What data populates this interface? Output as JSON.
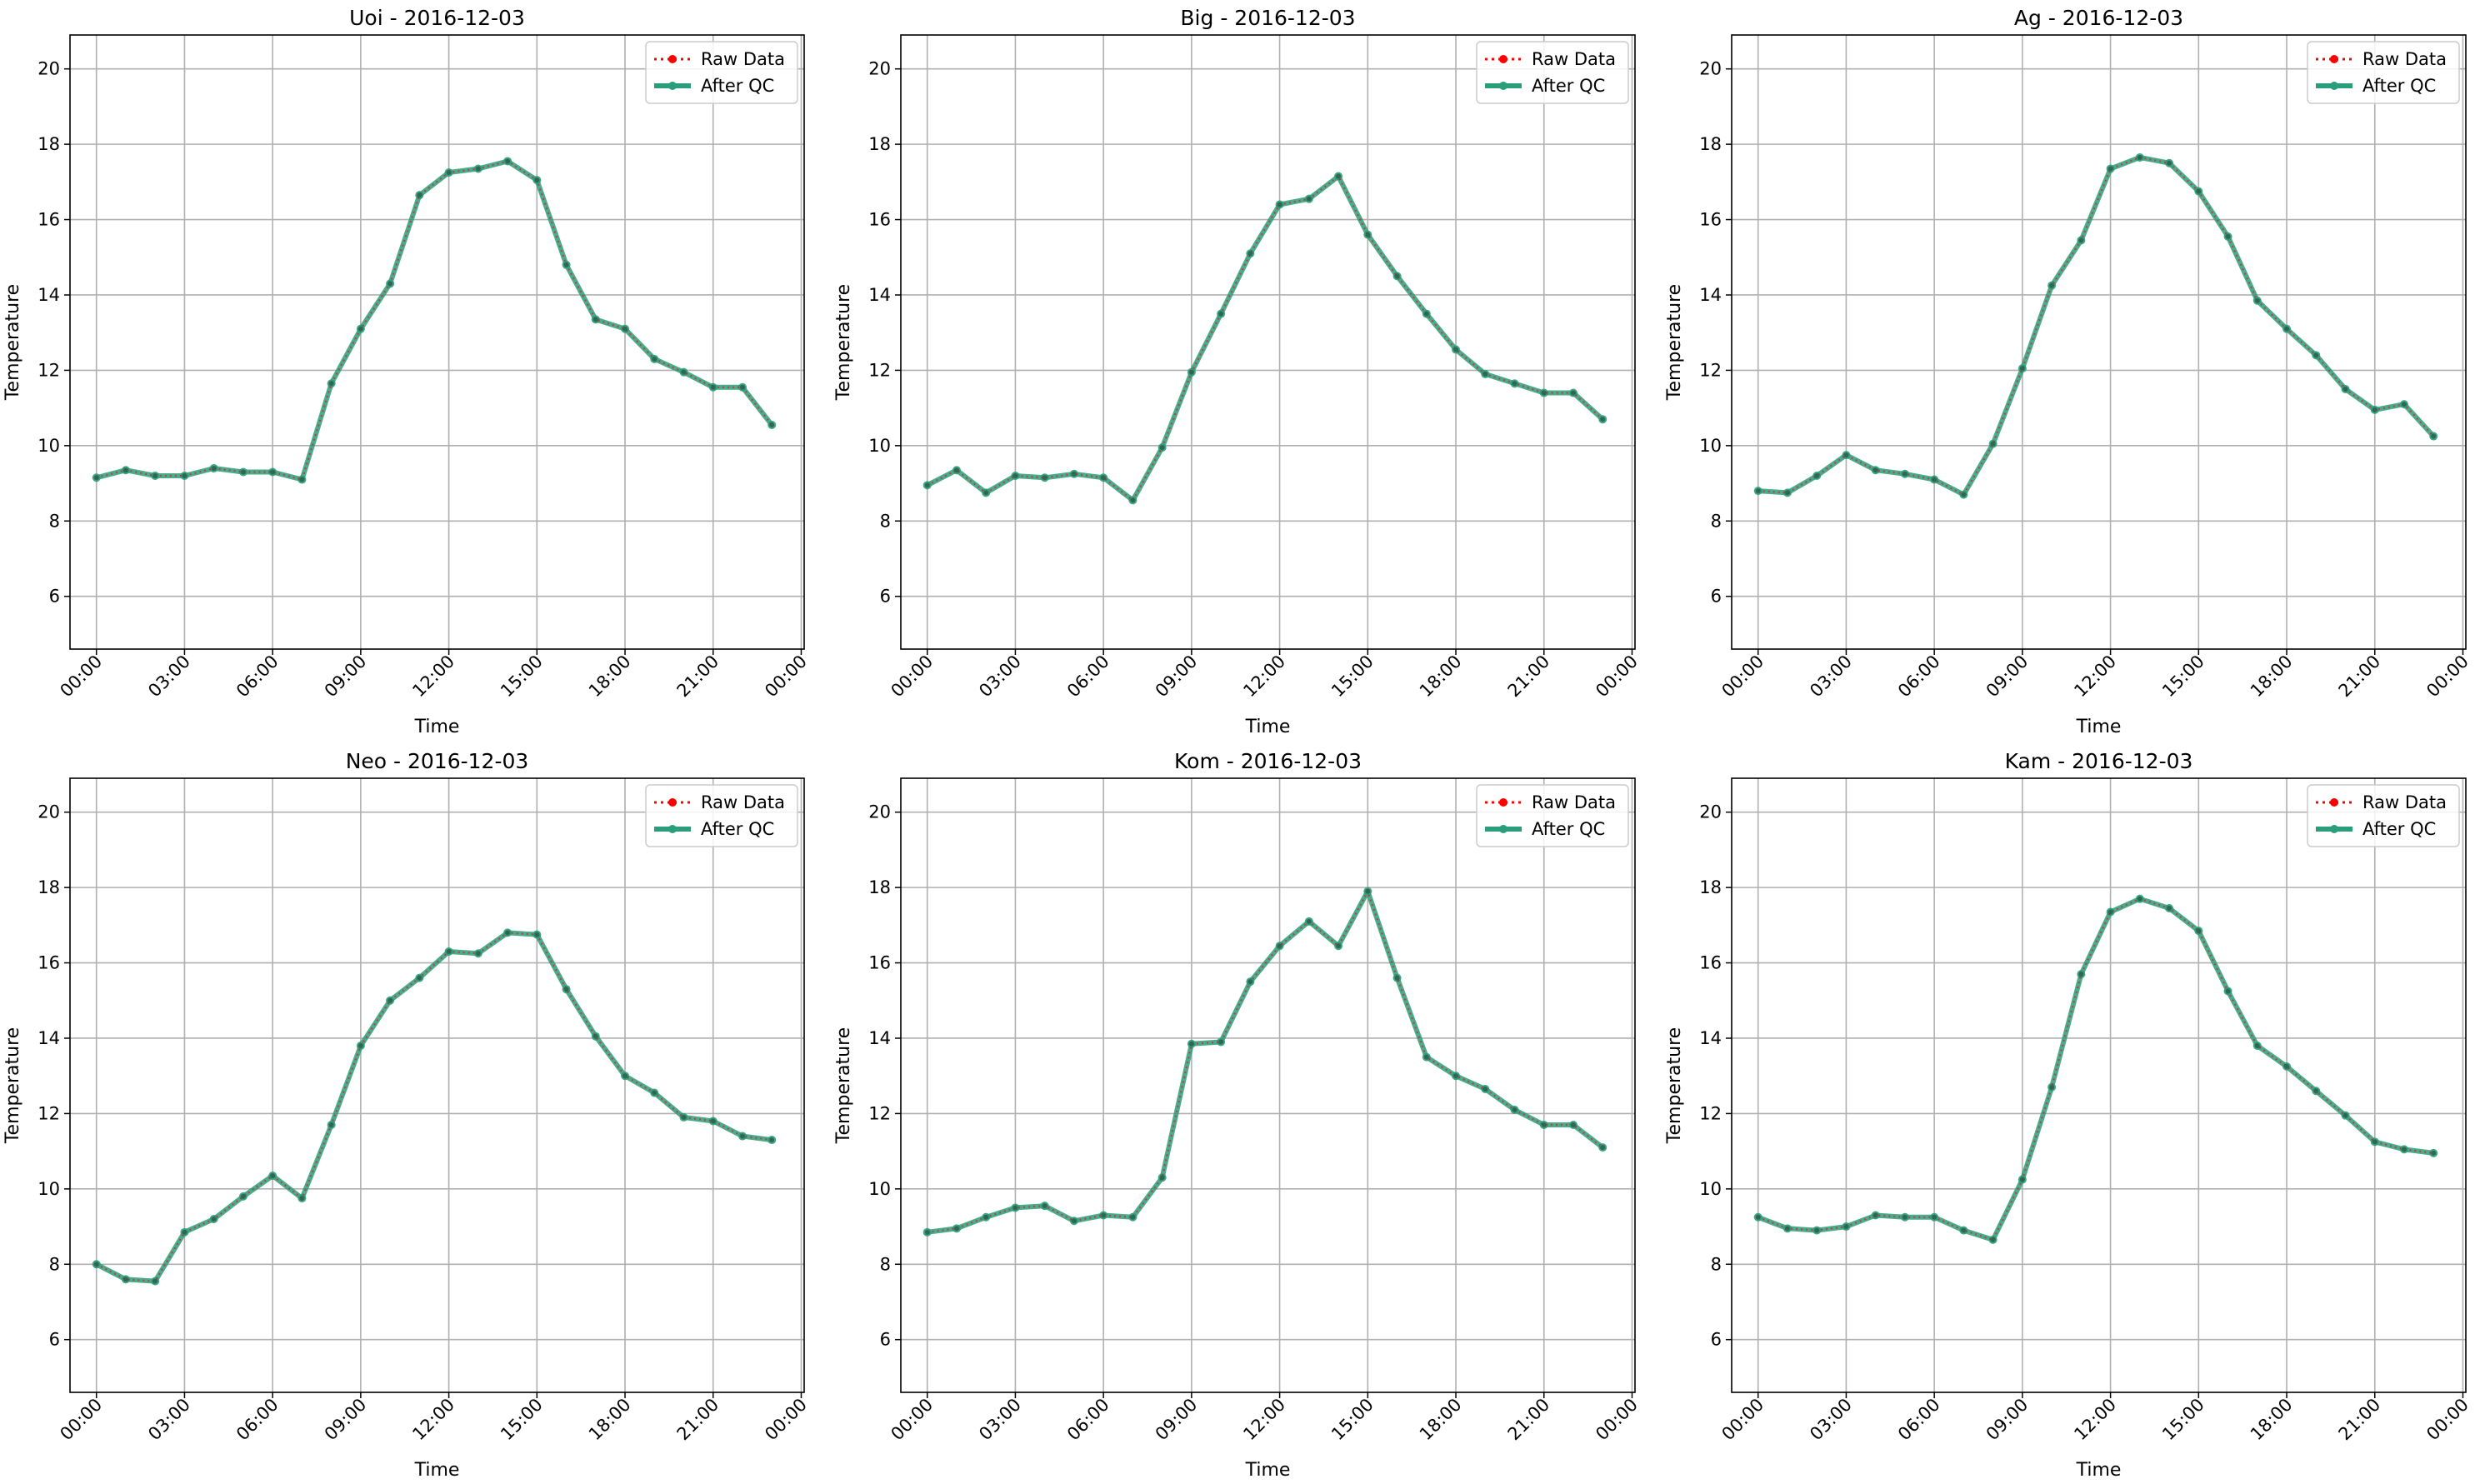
{
  "colors": {
    "raw": "#ff0000",
    "qc": "#2a9d7a",
    "grid": "#b0b0b0",
    "axis": "#000000"
  },
  "legend": {
    "placement": "top-right",
    "raw_label": "Raw Data",
    "qc_label": "After QC"
  },
  "chart_data": [
    {
      "type": "line",
      "title": "Uoi - 2016-12-03",
      "xlabel": "Time",
      "ylabel": "Temperature",
      "ylim": [
        4.6,
        20.9
      ],
      "xlim": [
        -0.9,
        24.1
      ],
      "yticks": [
        6,
        8,
        10,
        12,
        14,
        16,
        18,
        20
      ],
      "xticks": [
        0,
        3,
        6,
        9,
        12,
        15,
        18,
        21,
        24
      ],
      "xticklabels": [
        "00:00",
        "03:00",
        "06:00",
        "09:00",
        "12:00",
        "15:00",
        "18:00",
        "21:00",
        "00:00"
      ],
      "grid": true,
      "x": [
        0,
        1,
        2,
        3,
        4,
        5,
        6,
        7,
        8,
        9,
        10,
        11,
        12,
        13,
        14,
        15,
        16,
        17,
        18,
        19,
        20,
        21,
        22,
        23
      ],
      "series": [
        {
          "name": "Raw Data",
          "values": [
            9.15,
            9.35,
            9.2,
            9.2,
            9.4,
            9.3,
            9.3,
            9.1,
            11.65,
            13.1,
            14.3,
            16.65,
            17.25,
            17.35,
            17.55,
            17.05,
            14.8,
            13.35,
            13.1,
            12.3,
            11.95,
            11.55,
            11.55,
            10.55
          ]
        },
        {
          "name": "After QC",
          "values": [
            9.15,
            9.35,
            9.2,
            9.2,
            9.4,
            9.3,
            9.3,
            9.1,
            11.65,
            13.1,
            14.3,
            16.65,
            17.25,
            17.35,
            17.55,
            17.05,
            14.8,
            13.35,
            13.1,
            12.3,
            11.95,
            11.55,
            11.55,
            10.55
          ]
        }
      ]
    },
    {
      "type": "line",
      "title": "Big - 2016-12-03",
      "xlabel": "Time",
      "ylabel": "Temperature",
      "ylim": [
        4.6,
        20.9
      ],
      "xlim": [
        -0.9,
        24.1
      ],
      "yticks": [
        6,
        8,
        10,
        12,
        14,
        16,
        18,
        20
      ],
      "xticks": [
        0,
        3,
        6,
        9,
        12,
        15,
        18,
        21,
        24
      ],
      "xticklabels": [
        "00:00",
        "03:00",
        "06:00",
        "09:00",
        "12:00",
        "15:00",
        "18:00",
        "21:00",
        "00:00"
      ],
      "grid": true,
      "x": [
        0,
        1,
        2,
        3,
        4,
        5,
        6,
        7,
        8,
        9,
        10,
        11,
        12,
        13,
        14,
        15,
        16,
        17,
        18,
        19,
        20,
        21,
        22,
        23
      ],
      "series": [
        {
          "name": "Raw Data",
          "values": [
            8.95,
            9.35,
            8.75,
            9.2,
            9.15,
            9.25,
            9.15,
            8.55,
            9.95,
            11.95,
            13.5,
            15.1,
            16.4,
            16.55,
            17.15,
            15.6,
            14.5,
            13.5,
            12.55,
            11.9,
            11.65,
            11.4,
            11.4,
            10.7
          ]
        },
        {
          "name": "After QC",
          "values": [
            8.95,
            9.35,
            8.75,
            9.2,
            9.15,
            9.25,
            9.15,
            8.55,
            9.95,
            11.95,
            13.5,
            15.1,
            16.4,
            16.55,
            17.15,
            15.6,
            14.5,
            13.5,
            12.55,
            11.9,
            11.65,
            11.4,
            11.4,
            10.7
          ]
        }
      ]
    },
    {
      "type": "line",
      "title": "Ag - 2016-12-03",
      "xlabel": "Time",
      "ylabel": "Temperature",
      "ylim": [
        4.6,
        20.9
      ],
      "xlim": [
        -0.9,
        24.1
      ],
      "yticks": [
        6,
        8,
        10,
        12,
        14,
        16,
        18,
        20
      ],
      "xticks": [
        0,
        3,
        6,
        9,
        12,
        15,
        18,
        21,
        24
      ],
      "xticklabels": [
        "00:00",
        "03:00",
        "06:00",
        "09:00",
        "12:00",
        "15:00",
        "18:00",
        "21:00",
        "00:00"
      ],
      "grid": true,
      "x": [
        0,
        1,
        2,
        3,
        4,
        5,
        6,
        7,
        8,
        9,
        10,
        11,
        12,
        13,
        14,
        15,
        16,
        17,
        18,
        19,
        20,
        21,
        22,
        23
      ],
      "series": [
        {
          "name": "Raw Data",
          "values": [
            8.8,
            8.75,
            9.2,
            9.75,
            9.35,
            9.25,
            9.1,
            8.7,
            10.05,
            12.05,
            14.25,
            15.45,
            17.35,
            17.65,
            17.5,
            16.75,
            15.55,
            13.85,
            13.1,
            12.4,
            11.5,
            10.95,
            11.1,
            10.25
          ]
        },
        {
          "name": "After QC",
          "values": [
            8.8,
            8.75,
            9.2,
            9.75,
            9.35,
            9.25,
            9.1,
            8.7,
            10.05,
            12.05,
            14.25,
            15.45,
            17.35,
            17.65,
            17.5,
            16.75,
            15.55,
            13.85,
            13.1,
            12.4,
            11.5,
            10.95,
            11.1,
            10.25
          ]
        }
      ]
    },
    {
      "type": "line",
      "title": "Neo - 2016-12-03",
      "xlabel": "Time",
      "ylabel": "Temperature",
      "ylim": [
        4.6,
        20.9
      ],
      "xlim": [
        -0.9,
        24.1
      ],
      "yticks": [
        6,
        8,
        10,
        12,
        14,
        16,
        18,
        20
      ],
      "xticks": [
        0,
        3,
        6,
        9,
        12,
        15,
        18,
        21,
        24
      ],
      "xticklabels": [
        "00:00",
        "03:00",
        "06:00",
        "09:00",
        "12:00",
        "15:00",
        "18:00",
        "21:00",
        "00:00"
      ],
      "grid": true,
      "x": [
        0,
        1,
        2,
        3,
        4,
        5,
        6,
        7,
        8,
        9,
        10,
        11,
        12,
        13,
        14,
        15,
        16,
        17,
        18,
        19,
        20,
        21,
        22,
        23
      ],
      "series": [
        {
          "name": "Raw Data",
          "values": [
            8.0,
            7.6,
            7.55,
            8.85,
            9.2,
            9.8,
            10.35,
            9.75,
            11.7,
            13.8,
            15.0,
            15.6,
            16.3,
            16.25,
            16.8,
            16.75,
            15.3,
            14.05,
            13.0,
            12.55,
            11.9,
            11.8,
            11.4,
            11.3
          ]
        },
        {
          "name": "After QC",
          "values": [
            8.0,
            7.6,
            7.55,
            8.85,
            9.2,
            9.8,
            10.35,
            9.75,
            11.7,
            13.8,
            15.0,
            15.6,
            16.3,
            16.25,
            16.8,
            16.75,
            15.3,
            14.05,
            13.0,
            12.55,
            11.9,
            11.8,
            11.4,
            11.3
          ]
        }
      ]
    },
    {
      "type": "line",
      "title": "Kom - 2016-12-03",
      "xlabel": "Time",
      "ylabel": "Temperature",
      "ylim": [
        4.6,
        20.9
      ],
      "xlim": [
        -0.9,
        24.1
      ],
      "yticks": [
        6,
        8,
        10,
        12,
        14,
        16,
        18,
        20
      ],
      "xticks": [
        0,
        3,
        6,
        9,
        12,
        15,
        18,
        21,
        24
      ],
      "xticklabels": [
        "00:00",
        "03:00",
        "06:00",
        "09:00",
        "12:00",
        "15:00",
        "18:00",
        "21:00",
        "00:00"
      ],
      "grid": true,
      "x": [
        0,
        1,
        2,
        3,
        4,
        5,
        6,
        7,
        8,
        9,
        10,
        11,
        12,
        13,
        14,
        15,
        16,
        17,
        18,
        19,
        20,
        21,
        22,
        23
      ],
      "series": [
        {
          "name": "Raw Data",
          "values": [
            8.85,
            8.95,
            9.25,
            9.5,
            9.55,
            9.15,
            9.3,
            9.25,
            10.3,
            13.85,
            13.9,
            15.5,
            16.45,
            17.1,
            16.45,
            17.9,
            15.6,
            13.5,
            13.0,
            12.65,
            12.1,
            11.7,
            11.7,
            11.1
          ]
        },
        {
          "name": "After QC",
          "values": [
            8.85,
            8.95,
            9.25,
            9.5,
            9.55,
            9.15,
            9.3,
            9.25,
            10.3,
            13.85,
            13.9,
            15.5,
            16.45,
            17.1,
            16.45,
            17.9,
            15.6,
            13.5,
            13.0,
            12.65,
            12.1,
            11.7,
            11.7,
            11.1
          ]
        }
      ]
    },
    {
      "type": "line",
      "title": "Kam - 2016-12-03",
      "xlabel": "Time",
      "ylabel": "Temperature",
      "ylim": [
        4.6,
        20.9
      ],
      "xlim": [
        -0.9,
        24.1
      ],
      "yticks": [
        6,
        8,
        10,
        12,
        14,
        16,
        18,
        20
      ],
      "xticks": [
        0,
        3,
        6,
        9,
        12,
        15,
        18,
        21,
        24
      ],
      "xticklabels": [
        "00:00",
        "03:00",
        "06:00",
        "09:00",
        "12:00",
        "15:00",
        "18:00",
        "21:00",
        "00:00"
      ],
      "grid": true,
      "x": [
        0,
        1,
        2,
        3,
        4,
        5,
        6,
        7,
        8,
        9,
        10,
        11,
        12,
        13,
        14,
        15,
        16,
        17,
        18,
        19,
        20,
        21,
        22,
        23
      ],
      "series": [
        {
          "name": "Raw Data",
          "values": [
            9.25,
            8.95,
            8.9,
            9.0,
            9.3,
            9.25,
            9.25,
            8.9,
            8.65,
            10.25,
            12.7,
            15.7,
            17.35,
            17.7,
            17.45,
            16.85,
            15.25,
            13.8,
            13.25,
            12.6,
            11.95,
            11.25,
            11.05,
            10.95
          ]
        },
        {
          "name": "After QC",
          "values": [
            9.25,
            8.95,
            8.9,
            9.0,
            9.3,
            9.25,
            9.25,
            8.9,
            8.65,
            10.25,
            12.7,
            15.7,
            17.35,
            17.7,
            17.45,
            16.85,
            15.25,
            13.8,
            13.25,
            12.6,
            11.95,
            11.25,
            11.05,
            10.95
          ]
        }
      ]
    }
  ]
}
